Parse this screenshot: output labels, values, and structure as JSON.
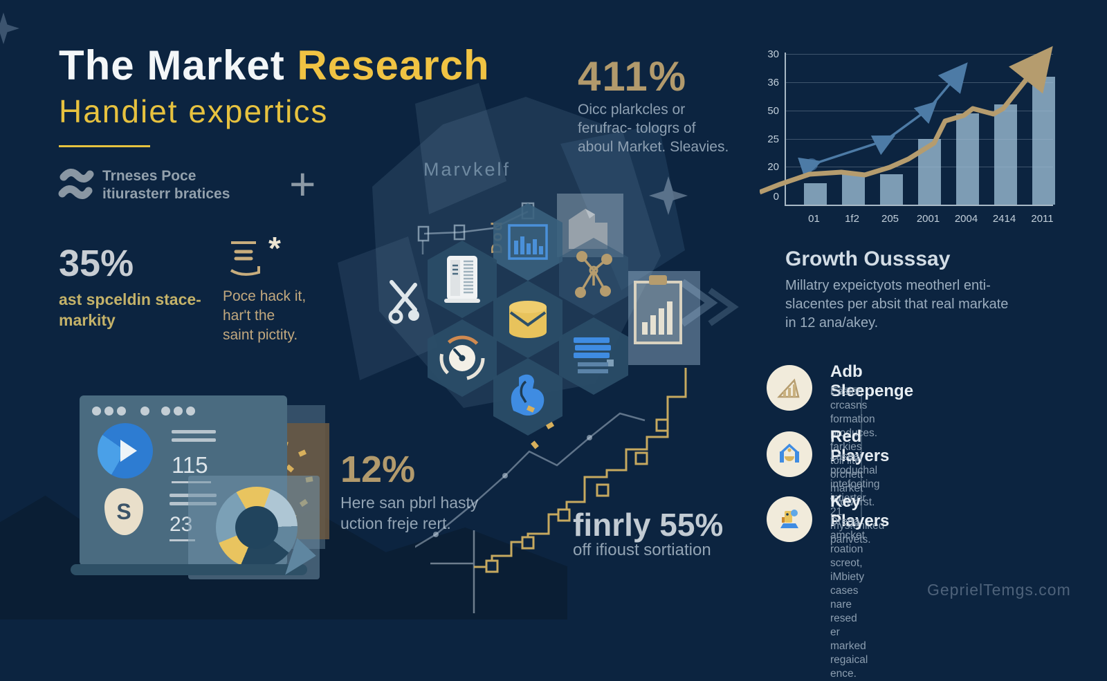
{
  "header": {
    "title_white": "The Market",
    "title_accent": " Research",
    "subtitle": "Handiet expertics",
    "brand_line1": "Trneses Poce",
    "brand_line2": "itiurasterr bratices",
    "plus": "+",
    "bg_label": "Marvkelf"
  },
  "stats": {
    "pct411": {
      "value": "411%",
      "desc": "Oicc plarkcles or\nferufrac- tologrs of\naboul Market. Sleavies."
    },
    "pct35": {
      "value": "35%",
      "desc": "ast spceldin stace-\nmarkity"
    },
    "book": {
      "asterisk": "*",
      "desc": "Poce hack it,\nhar't the\nsaint pictity."
    },
    "pct12": {
      "value": "12%",
      "desc": "Here san pbrl hasty\nuction freje rert."
    },
    "pct55": {
      "value": "finrly 55%",
      "desc": "off ifioust sortiation"
    }
  },
  "dashboard": {
    "metric1": "115",
    "metric2": "23",
    "money_symbol": "S"
  },
  "hexgrid": {
    "doc_label": "Dod"
  },
  "growth": {
    "heading": "Growth Ousssay",
    "body": "Millatry expeictyots meotherl enti-\nslacentes per absit that real markate\nin 12 ana/akey.",
    "items": [
      {
        "title": "Adb Sleepenge",
        "desc": "Easior crcasns formation produces.\nfarkies toil lite orchett market Woworst."
      },
      {
        "title": "Red Players",
        "desc": "Laseei produchal intefoeting intierter\n21 mys.eniked parivets."
      },
      {
        "title": "Key Players",
        "desc": "Drega amcket roation screot, iMbiety\ncases nare resed er marked\nregaical ence."
      }
    ]
  },
  "page": {
    "watermark": "GeprielTemgs.com"
  },
  "chart_data": {
    "type": "bar+line combo",
    "title": "",
    "xlabel": "",
    "ylabel": "",
    "grid": true,
    "y_ticks": [
      "30",
      "36",
      "50",
      "25",
      "20",
      "0"
    ],
    "x_ticks": [
      "01",
      "1f2",
      "205",
      "2001",
      "2004",
      "2414",
      "2011"
    ],
    "bar_values_pct": [
      14,
      20,
      20,
      43,
      60,
      66,
      84
    ],
    "series": [
      {
        "name": "gold-trend",
        "color": "#b59c6e",
        "points": [
          [
            0,
            214
          ],
          [
            28,
            203
          ],
          [
            72,
            188
          ],
          [
            118,
            185
          ],
          [
            152,
            189
          ],
          [
            188,
            178
          ],
          [
            215,
            166
          ],
          [
            252,
            143
          ],
          [
            268,
            111
          ],
          [
            295,
            103
          ],
          [
            308,
            93
          ],
          [
            338,
            101
          ],
          [
            352,
            93
          ],
          [
            402,
            30
          ]
        ]
      },
      {
        "name": "blue-trend",
        "color": "#4d7ba6",
        "points": [
          [
            75,
            174
          ],
          [
            182,
            139
          ],
          [
            245,
            93
          ],
          [
            285,
            45
          ]
        ]
      }
    ]
  }
}
